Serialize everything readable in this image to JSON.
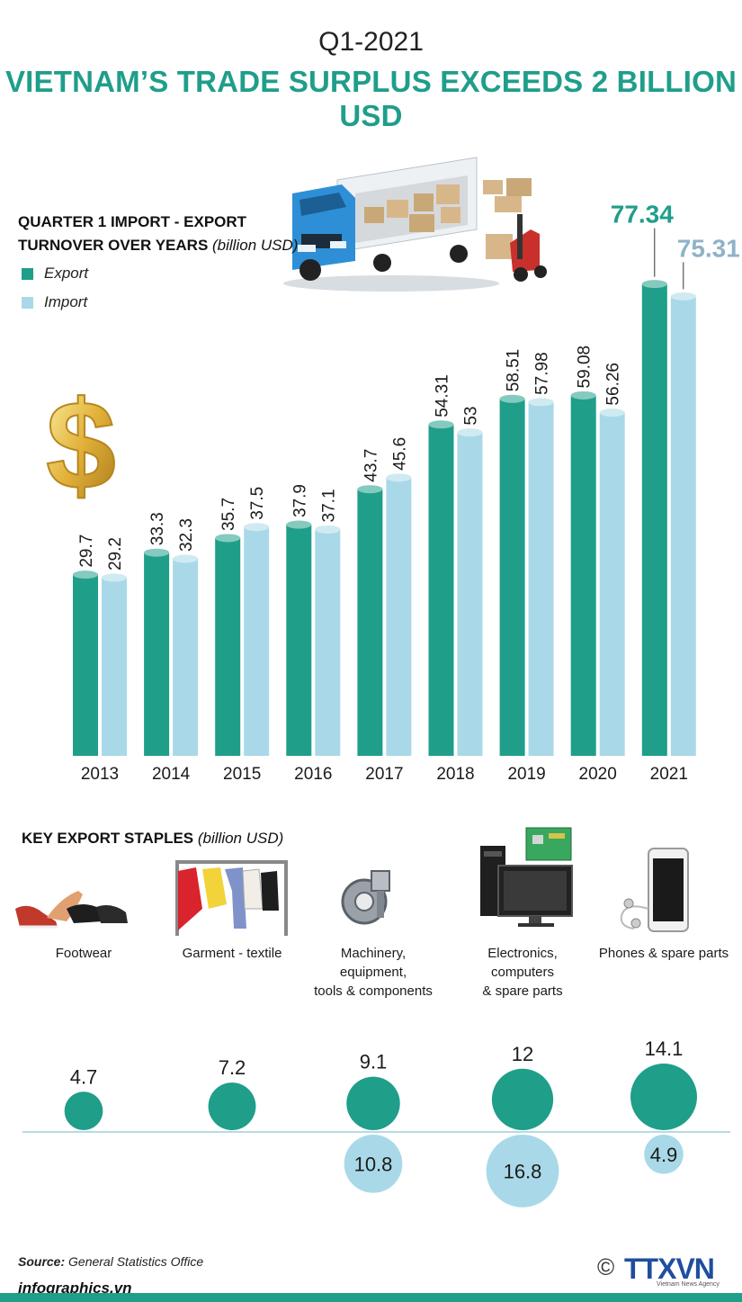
{
  "header": {
    "kicker": "Q1-2021",
    "title": "VIETNAM’S TRADE SURPLUS EXCEEDS 2 BILLION USD"
  },
  "chart_heading": {
    "line1": "QUARTER 1 IMPORT - EXPORT",
    "line2": "TURNOVER OVER YEARS",
    "unit": "(billion USD)"
  },
  "legend": {
    "export_label": "Export",
    "import_label": "Import"
  },
  "colors": {
    "export": "#1f9e8a",
    "import": "#a9d9e8",
    "import_value_2021": "#8fb2c9"
  },
  "icons": [
    "truck-forklift-illustration",
    "dollar-sign-icon",
    "shoe-icon",
    "garment-icon",
    "machinery-icon",
    "computer-icon",
    "phone-icon"
  ],
  "chart_data": [
    {
      "type": "bar",
      "categories": [
        "2013",
        "2014",
        "2015",
        "2016",
        "2017",
        "2018",
        "2019",
        "2020",
        "2021"
      ],
      "series": [
        {
          "name": "Export",
          "values": [
            29.7,
            33.3,
            35.7,
            37.9,
            43.7,
            54.31,
            58.51,
            59.08,
            77.34
          ],
          "labels": [
            "29.7",
            "33.3",
            "35.7",
            "37.9",
            "43.7",
            "54.31",
            "58.51",
            "59.08",
            "77.34"
          ]
        },
        {
          "name": "Import",
          "values": [
            29.2,
            32.3,
            37.5,
            37.1,
            45.6,
            53,
            57.98,
            56.26,
            75.31
          ],
          "labels": [
            "29.2",
            "32.3",
            "37.5",
            "37.1",
            "45.6",
            "53",
            "57.98",
            "56.26",
            "75.31"
          ]
        }
      ],
      "ylim": [
        0,
        80
      ],
      "grid": false,
      "legend": "top-left"
    },
    {
      "type": "scatter",
      "title": "KEY EXPORT STAPLES",
      "unit": "(billion USD)",
      "categories": [
        "Footwear",
        "Garment - textile",
        "Machinery, equipment, tools & components",
        "Electronics, computers & spare parts",
        "Phones & spare parts"
      ],
      "category_lines": [
        [
          "Footwear"
        ],
        [
          "Garment - textile"
        ],
        [
          "Machinery,",
          "equipment,",
          "tools & components"
        ],
        [
          "Electronics,",
          "computers",
          "& spare parts"
        ],
        [
          "Phones & spare parts"
        ]
      ],
      "series": [
        {
          "name": "Export",
          "values": [
            4.7,
            7.2,
            9.1,
            12,
            14.1
          ],
          "labels": [
            "4.7",
            "7.2",
            "9.1",
            "12",
            "14.1"
          ]
        },
        {
          "name": "Import",
          "values": [
            null,
            null,
            10.8,
            16.8,
            4.9
          ],
          "labels": [
            "",
            "",
            "10.8",
            "16.8",
            "4.9"
          ]
        }
      ]
    }
  ],
  "footer": {
    "source_label": "Source:",
    "source_text": "General Statistics Office",
    "site": "infographics.vn",
    "copyright": "©",
    "agency": "TTXVN",
    "agency_sub": "Vietnam News Agency"
  }
}
